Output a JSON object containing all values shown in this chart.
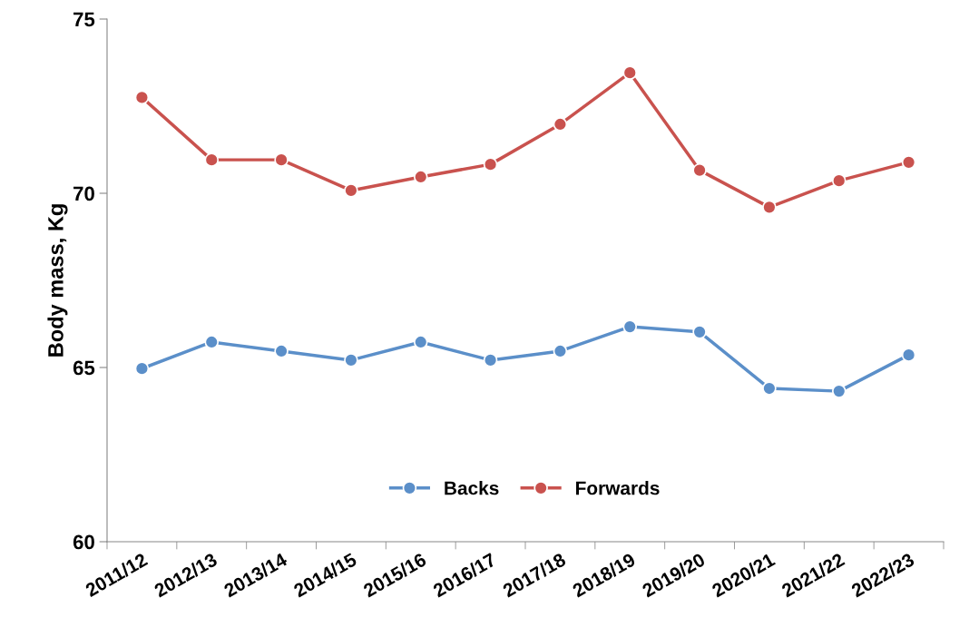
{
  "chart_data": {
    "type": "line",
    "ylabel": "Body mass, Kg",
    "categories": [
      "2011/12",
      "2012/13",
      "2013/14",
      "2014/15",
      "2015/16",
      "2016/17",
      "2017/18",
      "2018/19",
      "2019/20",
      "2020/21",
      "2021/22",
      "2022/23"
    ],
    "series": [
      {
        "name": "Backs",
        "color": "#5b8fc9",
        "values": [
          64.97,
          65.73,
          65.47,
          65.21,
          65.73,
          65.21,
          65.47,
          66.17,
          66.02,
          64.4,
          64.32,
          65.36
        ]
      },
      {
        "name": "Forwards",
        "color": "#c9524e",
        "values": [
          72.75,
          70.96,
          70.96,
          70.08,
          70.47,
          70.83,
          71.98,
          73.46,
          70.66,
          69.6,
          70.36,
          70.89
        ]
      }
    ],
    "ylim": [
      60,
      75
    ],
    "yticks": [
      60,
      65,
      70,
      75
    ],
    "grid": false,
    "legend": "bottom",
    "marker": "circle",
    "line_style": "solid"
  }
}
